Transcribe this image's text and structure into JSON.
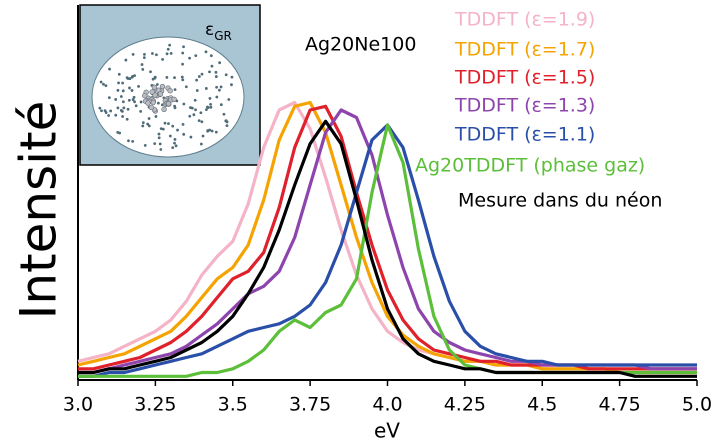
{
  "chart_data": {
    "type": "line",
    "ylabel": "Intensité",
    "xlabel": "eV",
    "annotation": "Ag20Ne100",
    "inset": {
      "symbol": "ε",
      "subscript": "GR"
    },
    "xlim": [
      3.0,
      5.0
    ],
    "xticks": [
      {
        "value": 3.0,
        "label": "3.0"
      },
      3.25,
      {
        "value": 3.5,
        "label": "3.5"
      },
      3.75,
      {
        "value": 4.0,
        "label": "4.0"
      },
      4.25,
      {
        "value": 4.5,
        "label": "4.5"
      },
      4.75,
      {
        "value": 5.0,
        "label": "5.0"
      }
    ],
    "ylim": [
      0,
      1
    ],
    "x": [
      3.0,
      3.05,
      3.1,
      3.15,
      3.2,
      3.25,
      3.3,
      3.35,
      3.4,
      3.45,
      3.5,
      3.55,
      3.6,
      3.65,
      3.7,
      3.75,
      3.8,
      3.85,
      3.9,
      3.95,
      4.0,
      4.05,
      4.1,
      4.15,
      4.2,
      4.25,
      4.3,
      4.35,
      4.4,
      4.45,
      4.5,
      4.55,
      4.6,
      4.65,
      4.7,
      4.75,
      4.8,
      4.85,
      4.9,
      4.95,
      5.0
    ],
    "series": [
      {
        "name": "TDDFT (ε=1.9)",
        "color": "#f4b3c6",
        "values": [
          0.05,
          0.06,
          0.07,
          0.09,
          0.11,
          0.13,
          0.16,
          0.21,
          0.28,
          0.33,
          0.37,
          0.47,
          0.62,
          0.72,
          0.74,
          0.67,
          0.54,
          0.4,
          0.28,
          0.19,
          0.13,
          0.1,
          0.08,
          0.07,
          0.06,
          0.05,
          0.05,
          0.04,
          0.04,
          0.04,
          0.03,
          0.03,
          0.03,
          0.03,
          0.03,
          0.02,
          0.02,
          0.02,
          0.02,
          0.02,
          0.02
        ]
      },
      {
        "name": "TDDFT (ε=1.7)",
        "color": "#f5a300",
        "values": [
          0.04,
          0.05,
          0.06,
          0.07,
          0.09,
          0.11,
          0.13,
          0.17,
          0.22,
          0.27,
          0.3,
          0.36,
          0.48,
          0.64,
          0.73,
          0.74,
          0.66,
          0.52,
          0.38,
          0.26,
          0.17,
          0.12,
          0.09,
          0.07,
          0.06,
          0.05,
          0.05,
          0.04,
          0.04,
          0.04,
          0.03,
          0.03,
          0.03,
          0.03,
          0.03,
          0.02,
          0.02,
          0.02,
          0.02,
          0.02,
          0.02
        ]
      },
      {
        "name": "TDDFT (ε=1.5)",
        "color": "#e0202a",
        "values": [
          0.03,
          0.03,
          0.04,
          0.05,
          0.06,
          0.08,
          0.1,
          0.13,
          0.17,
          0.22,
          0.27,
          0.29,
          0.34,
          0.46,
          0.62,
          0.72,
          0.73,
          0.65,
          0.5,
          0.36,
          0.24,
          0.16,
          0.11,
          0.08,
          0.07,
          0.06,
          0.05,
          0.05,
          0.04,
          0.04,
          0.04,
          0.04,
          0.04,
          0.03,
          0.03,
          0.03,
          0.03,
          0.03,
          0.03,
          0.03,
          0.03
        ]
      },
      {
        "name": "TDDFT (ε=1.3)",
        "color": "#8e44ad",
        "values": [
          0.02,
          0.02,
          0.03,
          0.04,
          0.05,
          0.06,
          0.07,
          0.09,
          0.12,
          0.15,
          0.19,
          0.23,
          0.25,
          0.29,
          0.38,
          0.52,
          0.66,
          0.72,
          0.7,
          0.6,
          0.44,
          0.3,
          0.19,
          0.13,
          0.1,
          0.08,
          0.07,
          0.06,
          0.05,
          0.05,
          0.04,
          0.04,
          0.04,
          0.04,
          0.04,
          0.04,
          0.04,
          0.03,
          0.03,
          0.03,
          0.03
        ]
      },
      {
        "name": "TDDFT (ε=1.1)",
        "color": "#2a4fa8",
        "values": [
          0.01,
          0.01,
          0.02,
          0.02,
          0.03,
          0.04,
          0.05,
          0.06,
          0.07,
          0.09,
          0.11,
          0.13,
          0.14,
          0.15,
          0.17,
          0.2,
          0.26,
          0.36,
          0.5,
          0.64,
          0.68,
          0.62,
          0.48,
          0.33,
          0.21,
          0.13,
          0.09,
          0.07,
          0.06,
          0.05,
          0.05,
          0.04,
          0.04,
          0.04,
          0.04,
          0.04,
          0.04,
          0.04,
          0.04,
          0.04,
          0.04
        ]
      },
      {
        "name": "Ag20TDDFT (phase gaz)",
        "color": "#5cbf3a",
        "values": [
          0.01,
          0.01,
          0.01,
          0.01,
          0.01,
          0.01,
          0.01,
          0.01,
          0.02,
          0.02,
          0.03,
          0.05,
          0.08,
          0.13,
          0.16,
          0.14,
          0.18,
          0.2,
          0.27,
          0.5,
          0.68,
          0.58,
          0.35,
          0.17,
          0.08,
          0.04,
          0.03,
          0.02,
          0.02,
          0.02,
          0.02,
          0.02,
          0.02,
          0.02,
          0.02,
          0.02,
          0.02,
          0.02,
          0.02,
          0.02,
          0.02
        ]
      },
      {
        "name": "Mesure dans du néon",
        "color": "#000000",
        "values": [
          0.02,
          0.02,
          0.03,
          0.03,
          0.04,
          0.05,
          0.06,
          0.08,
          0.1,
          0.13,
          0.17,
          0.23,
          0.3,
          0.4,
          0.52,
          0.63,
          0.69,
          0.63,
          0.48,
          0.32,
          0.19,
          0.11,
          0.07,
          0.05,
          0.04,
          0.03,
          0.03,
          0.02,
          0.02,
          0.02,
          0.02,
          0.02,
          0.02,
          0.02,
          0.02,
          0.02,
          0.01,
          0.01,
          0.01,
          0.01,
          0.01
        ]
      }
    ]
  }
}
